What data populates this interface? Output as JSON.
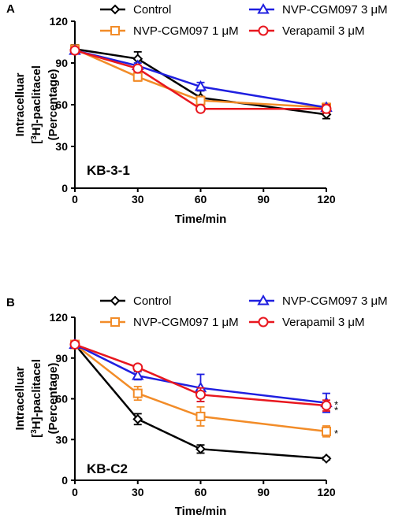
{
  "chart_data": [
    {
      "type": "line",
      "panel_label": "A",
      "cell_line": "KB-3-1",
      "xlabel": "Time/min",
      "ylabel": [
        "Intracelluar",
        "[3H]-paclitacel",
        "(Percentage)"
      ],
      "xlim": [
        0,
        120
      ],
      "ylim": [
        0,
        120
      ],
      "xticks": [
        0,
        30,
        60,
        90,
        120
      ],
      "yticks": [
        0,
        30,
        60,
        90,
        120
      ],
      "x": [
        0,
        30,
        60,
        120
      ],
      "series": [
        {
          "name": "Control",
          "color": "#000000",
          "marker": "diamond",
          "values": [
            100,
            93,
            65,
            53
          ],
          "errors": [
            3,
            5,
            5,
            3
          ]
        },
        {
          "name": "NVP-CGM097 1 μM",
          "color": "#F28C28",
          "marker": "square",
          "values": [
            100,
            80,
            63,
            58
          ],
          "errors": [
            2,
            3,
            3,
            3
          ]
        },
        {
          "name": "NVP-CGM097 3 μM",
          "color": "#1F1FE0",
          "marker": "triangle",
          "values": [
            99,
            88,
            73,
            58
          ],
          "errors": [
            2,
            2,
            3,
            2
          ]
        },
        {
          "name": "Verapamil 3 μM",
          "color": "#E8171F",
          "marker": "circle",
          "values": [
            99,
            86,
            57,
            57
          ],
          "errors": [
            2,
            2,
            2,
            3
          ]
        }
      ],
      "significance": []
    },
    {
      "type": "line",
      "panel_label": "B",
      "cell_line": "KB-C2",
      "xlabel": "Time/min",
      "ylabel": [
        "Intracelluar",
        "[3H]-paclitacel",
        "(Percentage)"
      ],
      "xlim": [
        0,
        120
      ],
      "ylim": [
        0,
        120
      ],
      "xticks": [
        0,
        30,
        60,
        90,
        120
      ],
      "yticks": [
        0,
        30,
        60,
        90,
        120
      ],
      "x": [
        0,
        30,
        60,
        120
      ],
      "series": [
        {
          "name": "Control",
          "color": "#000000",
          "marker": "diamond",
          "values": [
            100,
            45,
            23,
            16
          ],
          "errors": [
            2,
            4,
            3,
            1
          ]
        },
        {
          "name": "NVP-CGM097 1 μM",
          "color": "#F28C28",
          "marker": "square",
          "values": [
            100,
            64,
            47,
            36
          ],
          "errors": [
            2,
            5,
            7,
            4
          ]
        },
        {
          "name": "NVP-CGM097 3 μM",
          "color": "#1F1FE0",
          "marker": "triangle",
          "values": [
            100,
            77,
            68,
            57
          ],
          "errors": [
            2,
            3,
            10,
            7
          ]
        },
        {
          "name": "Verapamil 3 μM",
          "color": "#E8171F",
          "marker": "circle",
          "values": [
            100,
            83,
            63,
            55
          ],
          "errors": [
            2,
            2,
            5,
            4
          ]
        }
      ],
      "significance": [
        {
          "y": 57,
          "label": "*"
        },
        {
          "y": 53,
          "label": "*"
        },
        {
          "y": 36,
          "label": "*"
        }
      ]
    }
  ]
}
